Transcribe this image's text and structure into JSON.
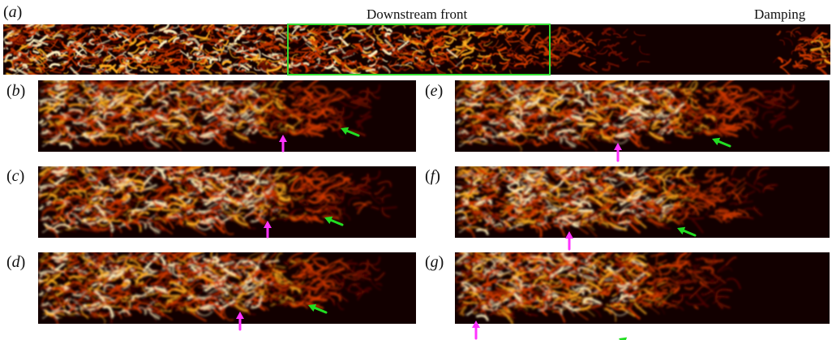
{
  "header": {
    "downstream_front": "Downstream front",
    "damping": "Damping"
  },
  "panels": [
    {
      "id": "a",
      "label_open": "(",
      "label_letter": "a",
      "label_close": ")"
    },
    {
      "id": "b",
      "label_open": "(",
      "label_letter": "b",
      "label_close": ")"
    },
    {
      "id": "c",
      "label_open": "(",
      "label_letter": "c",
      "label_close": ")"
    },
    {
      "id": "d",
      "label_open": "(",
      "label_letter": "d",
      "label_close": ")"
    },
    {
      "id": "e",
      "label_open": "(",
      "label_letter": "e",
      "label_close": ")"
    },
    {
      "id": "f",
      "label_open": "(",
      "label_letter": "f",
      "label_close": ")"
    },
    {
      "id": "g",
      "label_open": "(",
      "label_letter": "g",
      "label_close": ")"
    }
  ],
  "colors": {
    "background": "#120000",
    "flow_dark": "#6a0a00",
    "flow_mid": "#d23a00",
    "flow_bright": "#ffb020",
    "flow_white": "#fff2c0",
    "highlight_box": "#33dd33",
    "arrow_magenta": "#ff33ff",
    "arrow_green": "#22dd22"
  }
}
